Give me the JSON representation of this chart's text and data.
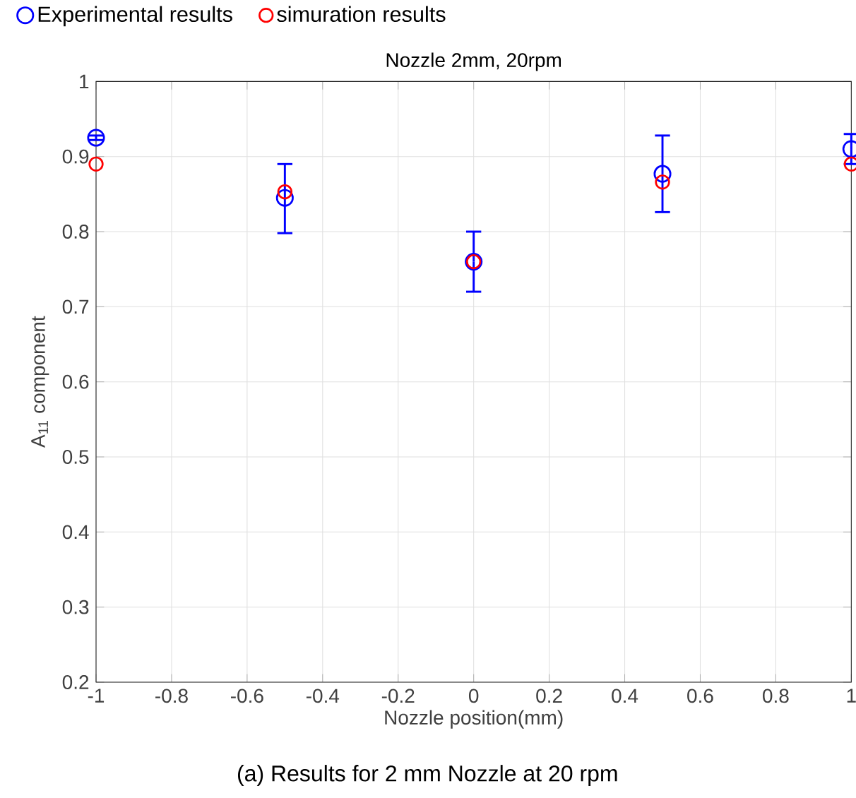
{
  "chart_data": {
    "type": "scatter",
    "title": "Nozzle 2mm, 20rpm",
    "xlabel": "Nozzle position(mm)",
    "ylabel": "A$_{11}$ component",
    "annotations": [
      "(a) Results for 2 mm Nozzle at 20 rpm"
    ],
    "x": [
      -1,
      -0.5,
      0,
      0.5,
      1
    ],
    "series": [
      {
        "name": "Experimental results",
        "color": "#0000ff",
        "values": [
          0.925,
          0.845,
          0.76,
          0.877,
          0.91
        ],
        "errors": [
          [
            0.922,
            0.928
          ],
          [
            0.798,
            0.89
          ],
          [
            0.72,
            0.8
          ],
          [
            0.826,
            0.928
          ],
          [
            0.89,
            0.93
          ]
        ]
      },
      {
        "name": "simuration results",
        "color": "#ff0000",
        "values": [
          0.89,
          0.853,
          0.76,
          0.866,
          0.89
        ]
      }
    ],
    "xlim": [
      -1,
      1
    ],
    "ylim": [
      0.2,
      1
    ],
    "xticks": [
      -1,
      -0.8,
      -0.6,
      -0.4,
      -0.2,
      0,
      0.2,
      0.4,
      0.6,
      0.8,
      1
    ],
    "yticks": [
      0.2,
      0.3,
      0.4,
      0.5,
      0.6,
      0.7,
      0.8,
      0.9,
      1
    ],
    "grid": true,
    "legend": "top left",
    "marker": "circle"
  }
}
